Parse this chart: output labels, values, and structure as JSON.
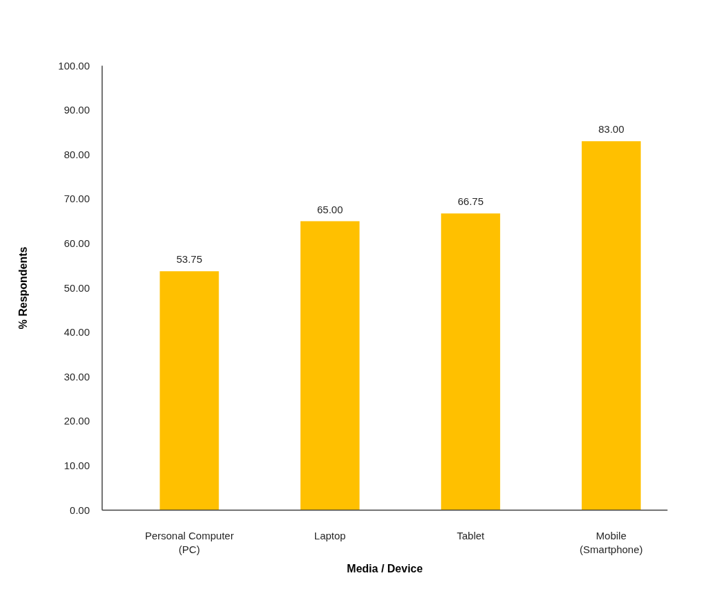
{
  "chart_data": {
    "type": "bar",
    "xlabel": "Media / Device",
    "ylabel": "% Respondents",
    "categories": [
      "Personal Computer\n(PC)",
      "Laptop",
      "Tablet",
      "Mobile\n(Smartphone)"
    ],
    "values": [
      53.75,
      65.0,
      66.75,
      83.0
    ],
    "color": "#ffc000",
    "value_labels": [
      "53.75",
      "65.00",
      "66.75",
      "83.00"
    ],
    "ylim": [
      0,
      100
    ],
    "yticks": [
      {
        "value": 0,
        "label": "0.00"
      },
      {
        "value": 10,
        "label": "10.00"
      },
      {
        "value": 20,
        "label": "20.00"
      },
      {
        "value": 30,
        "label": "30.00"
      },
      {
        "value": 40,
        "label": "40.00"
      },
      {
        "value": 50,
        "label": "50.00"
      },
      {
        "value": 60,
        "label": "60.00"
      },
      {
        "value": 70,
        "label": "70.00"
      },
      {
        "value": 80,
        "label": "80.00"
      },
      {
        "value": 90,
        "label": "90.00"
      },
      {
        "value": 100,
        "label": "100.00"
      }
    ]
  }
}
